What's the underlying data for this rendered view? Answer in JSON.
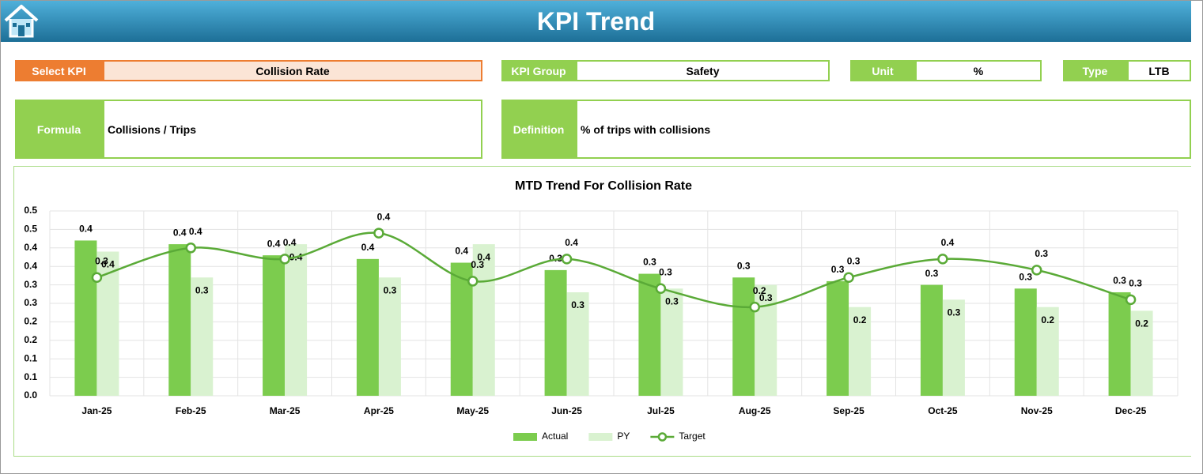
{
  "header": {
    "title": "KPI Trend"
  },
  "fields": {
    "select_kpi": {
      "label": "Select KPI",
      "value": "Collision Rate"
    },
    "kpi_group": {
      "label": "KPI Group",
      "value": "Safety"
    },
    "unit": {
      "label": "Unit",
      "value": "%"
    },
    "type": {
      "label": "Type",
      "value": "LTB"
    },
    "formula": {
      "label": "Formula",
      "value": "Collisions / Trips"
    },
    "definition": {
      "label": "Definition",
      "value": "% of trips with collisions"
    }
  },
  "chart_data": {
    "type": "combo",
    "title": "MTD Trend For Collision Rate",
    "categories": [
      "Jan-25",
      "Feb-25",
      "Mar-25",
      "Apr-25",
      "May-25",
      "Jun-25",
      "Jul-25",
      "Aug-25",
      "Sep-25",
      "Oct-25",
      "Nov-25",
      "Dec-25"
    ],
    "series": [
      {
        "name": "Actual",
        "type": "bar",
        "color": "#7ccc4e",
        "values": [
          0.42,
          0.41,
          0.38,
          0.37,
          0.36,
          0.34,
          0.33,
          0.32,
          0.31,
          0.3,
          0.29,
          0.28
        ],
        "value_labels": [
          "0.4",
          "0.4",
          "0.4",
          "0.4",
          "0.4",
          "0.3",
          "0.3",
          "0.3",
          "0.3",
          "0.3",
          "0.3",
          "0.3"
        ]
      },
      {
        "name": "PY",
        "type": "bar",
        "color": "#d9f2d0",
        "values": [
          0.39,
          0.32,
          0.41,
          0.32,
          0.41,
          0.28,
          0.29,
          0.3,
          0.24,
          0.26,
          0.24,
          0.23
        ],
        "value_labels": [
          "0.4",
          "0.3",
          "0.4",
          "0.3",
          "0.4",
          "0.3",
          "0.3",
          "0.3",
          "0.2",
          "0.3",
          "0.2",
          "0.2"
        ]
      },
      {
        "name": "Target",
        "type": "line",
        "color": "#5aaa37",
        "values": [
          0.32,
          0.4,
          0.37,
          0.44,
          0.31,
          0.37,
          0.29,
          0.24,
          0.32,
          0.37,
          0.34,
          0.26
        ],
        "value_labels": [
          "0.3",
          "0.4",
          "0.4",
          "0.4",
          "0.3",
          "0.4",
          "0.3",
          "0.2",
          "0.3",
          "0.4",
          "0.3",
          "0.3"
        ]
      }
    ],
    "ylim": [
      0,
      0.5
    ],
    "yticks": [
      {
        "value": 0,
        "label": "0.0"
      },
      {
        "value": 0.05,
        "label": "0.1"
      },
      0.1,
      {
        "value": 0.15,
        "label": "0.2"
      },
      0.2,
      {
        "value": 0.25,
        "label": "0.3"
      },
      0.3,
      {
        "value": 0.35,
        "label": "0.4"
      },
      0.4,
      {
        "value": 0.45,
        "label": "0.5"
      },
      0.5
    ],
    "grid": true,
    "legend": "bottom"
  }
}
